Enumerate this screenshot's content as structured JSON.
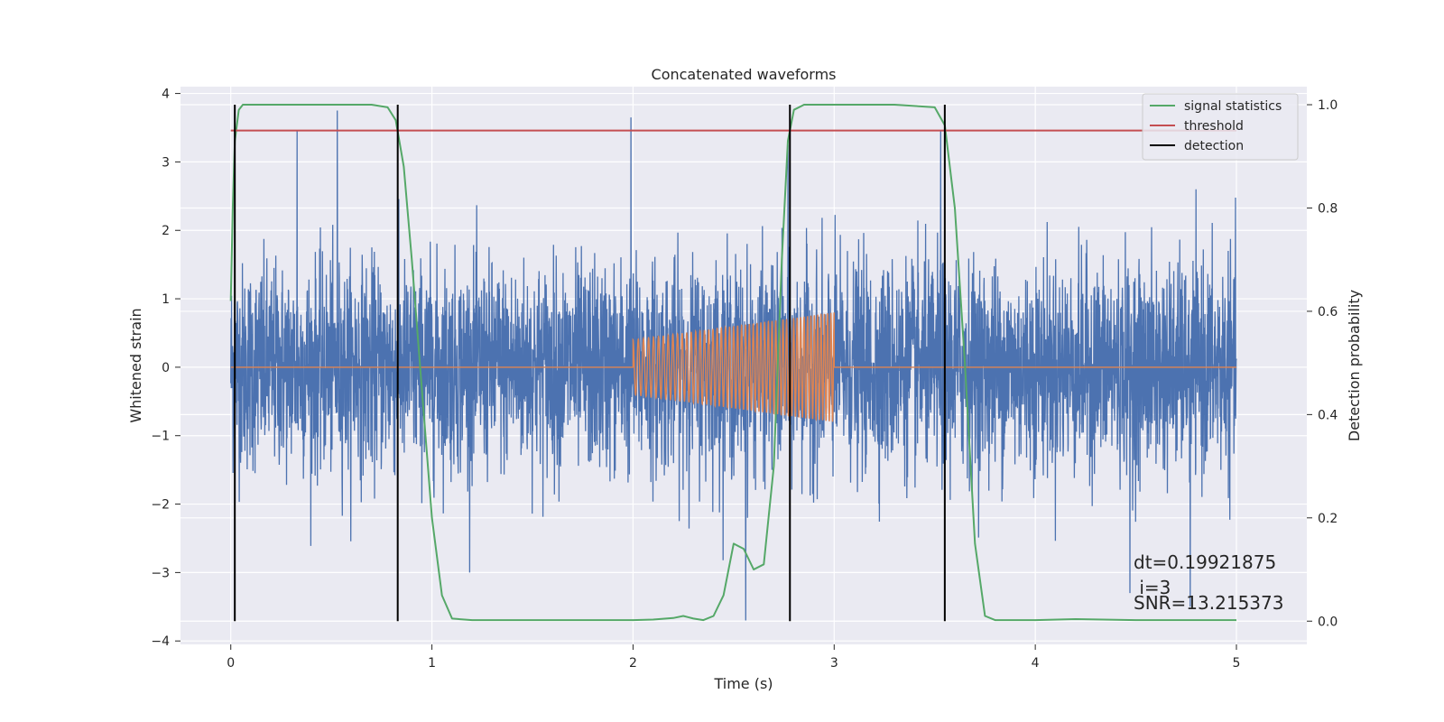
{
  "chart_data": {
    "type": "line",
    "title": "Concatenated waveforms",
    "xlabel": "Time (s)",
    "ylabel": "Whitened strain",
    "y2label": "Detection probability",
    "xlim": [
      -0.25,
      5.35
    ],
    "ylim": [
      -4.05,
      4.1
    ],
    "y2lim": [
      -0.045,
      1.035
    ],
    "grid": true,
    "legend_position": "top-right",
    "x_ticks": [
      0,
      1,
      2,
      3,
      4,
      5
    ],
    "y_ticks": [
      -4,
      -3,
      -2,
      -1,
      0,
      1,
      2,
      3,
      4
    ],
    "y2_ticks": [
      0.0,
      0.2,
      0.4,
      0.6,
      0.8,
      1.0
    ],
    "x_tick_labels": [
      "0",
      "1",
      "2",
      "3",
      "4",
      "5"
    ],
    "y_tick_labels": [
      "−4",
      "−3",
      "−2",
      "−1",
      "0",
      "1",
      "2",
      "3",
      "4"
    ],
    "y2_tick_labels": [
      "0.0",
      "0.2",
      "0.4",
      "0.6",
      "0.8",
      "1.0"
    ],
    "noise": {
      "color": "#4c72b0",
      "x_range": [
        0,
        5
      ],
      "typical_amplitude": 0.75,
      "notable_peaks": [
        [
          0.33,
          3.45
        ],
        [
          0.53,
          3.75
        ],
        [
          1.99,
          3.65
        ],
        [
          2.56,
          -3.7
        ],
        [
          2.77,
          3.25
        ],
        [
          3.53,
          3.45
        ],
        [
          4.47,
          -3.3
        ],
        [
          4.77,
          -3.5
        ]
      ]
    },
    "injected_waveform": {
      "color": "#dd8452",
      "t_start": 2.0,
      "t_end": 3.0,
      "amplitude_start": 0.4,
      "amplitude_end": 0.8,
      "frequency_start_hz": 38,
      "frequency_end_hz": 62,
      "zero_before_and_after": true
    },
    "series": [
      {
        "name": "signal statistics",
        "axis": "right",
        "color": "#55a868",
        "x": [
          0.0,
          0.01,
          0.02,
          0.04,
          0.06,
          0.1,
          0.2,
          0.5,
          0.7,
          0.78,
          0.82,
          0.86,
          0.9,
          0.95,
          1.0,
          1.05,
          1.1,
          1.2,
          1.5,
          2.0,
          2.1,
          2.2,
          2.25,
          2.3,
          2.35,
          2.4,
          2.45,
          2.5,
          2.55,
          2.6,
          2.65,
          2.7,
          2.74,
          2.77,
          2.8,
          2.85,
          2.9,
          3.0,
          3.3,
          3.5,
          3.55,
          3.6,
          3.65,
          3.7,
          3.75,
          3.8,
          4.0,
          4.2,
          4.5,
          5.0
        ],
        "values": [
          0.62,
          0.8,
          0.93,
          0.99,
          1.0,
          1.0,
          1.0,
          1.0,
          1.0,
          0.995,
          0.97,
          0.88,
          0.7,
          0.45,
          0.2,
          0.05,
          0.005,
          0.002,
          0.002,
          0.002,
          0.003,
          0.006,
          0.01,
          0.005,
          0.002,
          0.01,
          0.05,
          0.15,
          0.14,
          0.1,
          0.11,
          0.3,
          0.7,
          0.93,
          0.99,
          1.0,
          1.0,
          1.0,
          1.0,
          0.995,
          0.96,
          0.8,
          0.5,
          0.15,
          0.01,
          0.002,
          0.002,
          0.004,
          0.002,
          0.002
        ]
      },
      {
        "name": "threshold",
        "axis": "right",
        "color": "#c44e52",
        "x": [
          0,
          5
        ],
        "values": [
          0.95,
          0.95
        ]
      },
      {
        "name": "detection",
        "axis": "right",
        "color": "#000000",
        "vlines": [
          0.02,
          0.83,
          2.78,
          3.55
        ],
        "y_span": [
          0.0,
          1.0
        ]
      }
    ],
    "annotations": {
      "dt": "dt=0.19921875",
      "i": " i=3",
      "snr": "SNR=13.215373"
    }
  }
}
